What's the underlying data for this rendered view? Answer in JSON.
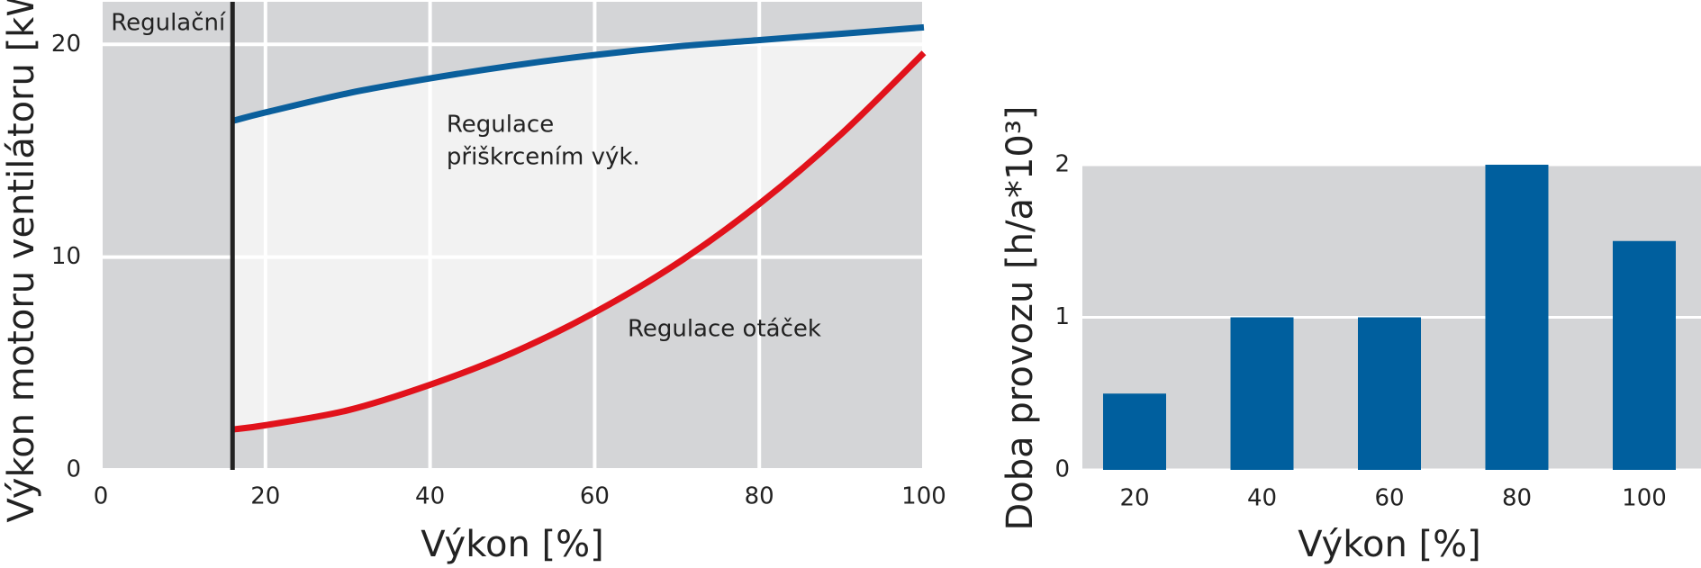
{
  "chart_data": [
    {
      "type": "line",
      "x_label": "Výkon [%]",
      "y_label": "Výkon motoru ventilátoru [kW]",
      "x": [
        16,
        20,
        30,
        40,
        50,
        60,
        70,
        80,
        90,
        100
      ],
      "series": [
        {
          "name": "Regulace přiškrcením výk.",
          "color": "#0a5f9c",
          "values": [
            16.4,
            16.8,
            17.7,
            18.4,
            19.0,
            19.5,
            19.9,
            20.2,
            20.5,
            20.8
          ]
        },
        {
          "name": "Regulace otáček",
          "color": "#e1121b",
          "values": [
            1.9,
            2.1,
            2.8,
            4.0,
            5.5,
            7.4,
            9.7,
            12.5,
            15.8,
            19.6
          ]
        }
      ],
      "annotations": [
        {
          "lines": [
            "Regulace",
            "přiškrcením výk."
          ],
          "x": 42,
          "y": 16.2
        },
        {
          "lines": [
            "Regulace otáček"
          ],
          "x": 64,
          "y": 6.6
        }
      ],
      "limit": {
        "x": 16,
        "label": "Regulační"
      },
      "xlim": [
        0,
        100
      ],
      "xticks": [
        0,
        20,
        40,
        60,
        80,
        100
      ],
      "ylim": [
        0,
        22
      ],
      "yticks": [
        0,
        10,
        20
      ],
      "grid": true
    },
    {
      "type": "bar",
      "x_label": "Výkon [%]",
      "y_label": "Doba provozu [h/a*10³]",
      "categories": [
        "20",
        "40",
        "60",
        "80",
        "100"
      ],
      "values": [
        0.5,
        1,
        1,
        2,
        1.5
      ],
      "color": "#005f9e",
      "ylim": [
        0,
        2
      ],
      "yticks": [
        0,
        1,
        2
      ],
      "grid": true
    }
  ]
}
